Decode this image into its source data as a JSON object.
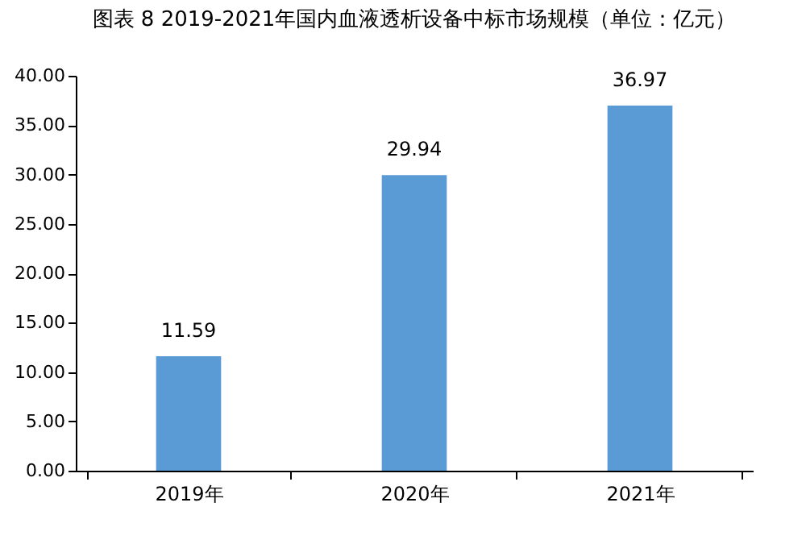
{
  "chart_data": {
    "type": "bar",
    "title": "图表 8 2019-2021年国内血液透析设备中标市场规模（单位：亿元）",
    "categories": [
      "2019年",
      "2020年",
      "2021年"
    ],
    "values": [
      11.59,
      29.94,
      36.97
    ],
    "color": "#5b9bd5",
    "ylim": [
      0,
      40
    ],
    "yticks": [
      {
        "value": 0,
        "label": "0.00"
      },
      {
        "value": 5,
        "label": "5.00"
      },
      {
        "value": 10,
        "label": "10.00"
      },
      {
        "value": 15,
        "label": "15.00"
      },
      {
        "value": 20,
        "label": "20.00"
      },
      {
        "value": 25,
        "label": "25.00"
      },
      {
        "value": 30,
        "label": "30.00"
      },
      {
        "value": 35,
        "label": "35.00"
      },
      {
        "value": 40,
        "label": "40.00"
      }
    ],
    "grid": false,
    "data_labels": true
  }
}
